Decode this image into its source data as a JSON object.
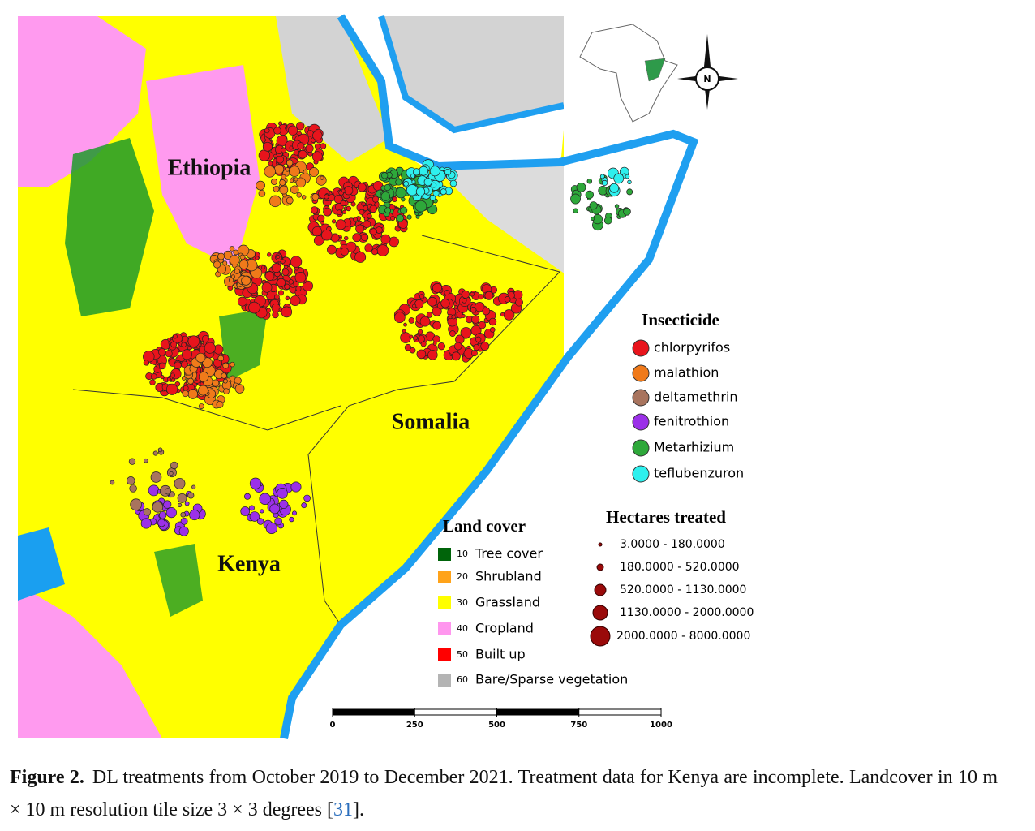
{
  "figure": {
    "country_labels": [
      "Ethiopia",
      "Somalia",
      "Kenya"
    ],
    "compass_label": "N",
    "insecticide_legend": {
      "title": "Insecticide",
      "items": [
        {
          "label": "chlorpyrifos",
          "color": "#e8141c"
        },
        {
          "label": "malathion",
          "color": "#f07a1a"
        },
        {
          "label": "deltamethrin",
          "color": "#a8745e"
        },
        {
          "label": "fenitrothion",
          "color": "#9b30e8"
        },
        {
          "label": "Metarhizium",
          "color": "#2ea83a"
        },
        {
          "label": "teflubenzuron",
          "color": "#2ef0ee"
        }
      ]
    },
    "hectares_legend": {
      "title": "Hectares treated",
      "items": [
        "3.0000 - 180.0000",
        "180.0000 - 520.0000",
        "520.0000 - 1130.0000",
        "1130.0000 - 2000.0000",
        "2000.0000 - 8000.0000"
      ]
    },
    "land_cover_legend": {
      "title": "Land cover",
      "items": [
        {
          "code": "10",
          "label": "Tree cover",
          "color": "#00640a"
        },
        {
          "code": "20",
          "label": "Shrubland",
          "color": "#ffa31a"
        },
        {
          "code": "30",
          "label": "Grassland",
          "color": "#ffff00"
        },
        {
          "code": "40",
          "label": "Cropland",
          "color": "#ff96ee"
        },
        {
          "code": "50",
          "label": "Built up",
          "color": "#ff0000"
        },
        {
          "code": "60",
          "label": "Bare/Sparse vegetation",
          "color": "#b4b4b4"
        }
      ]
    },
    "scale_bar": {
      "ticks": [
        0,
        250,
        500,
        750,
        1000
      ]
    }
  },
  "caption": {
    "label": "Figure 2.",
    "text": "DL treatments from October 2019 to December 2021. Treatment data for Kenya are incomplete. Landcover in 10 m × 10 m resolution tile size 3 × 3 degrees [",
    "ref": "31",
    "end": "]."
  }
}
